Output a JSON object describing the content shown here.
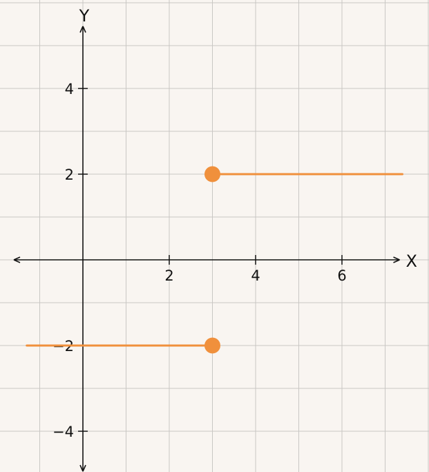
{
  "chart_data": {
    "type": "line",
    "xlabel": "X",
    "ylabel": "Y",
    "xlim": [
      -1.6,
      7.4
    ],
    "ylim": [
      -5,
      5.5
    ],
    "grid": true,
    "x_ticks": [
      2,
      4,
      6
    ],
    "x_tick_labels": [
      "2",
      "4",
      "6"
    ],
    "y_ticks": [
      4,
      2,
      -2,
      -4
    ],
    "y_tick_labels": [
      "4",
      "2",
      "−2",
      "−4"
    ],
    "series": [
      {
        "segment": [
          [
            3,
            2
          ],
          [
            7.4,
            2
          ]
        ],
        "endpoint": [
          3,
          2
        ],
        "endpoint_style": "closed"
      },
      {
        "segment": [
          [
            -1.3,
            -2
          ],
          [
            3,
            -2
          ]
        ],
        "endpoint": [
          3,
          -2
        ],
        "endpoint_style": "closed"
      }
    ],
    "colors": {
      "series": "#f0903c",
      "grid": "#c9c7c4",
      "axis": "#111111",
      "background": "#f9f5f1"
    }
  }
}
